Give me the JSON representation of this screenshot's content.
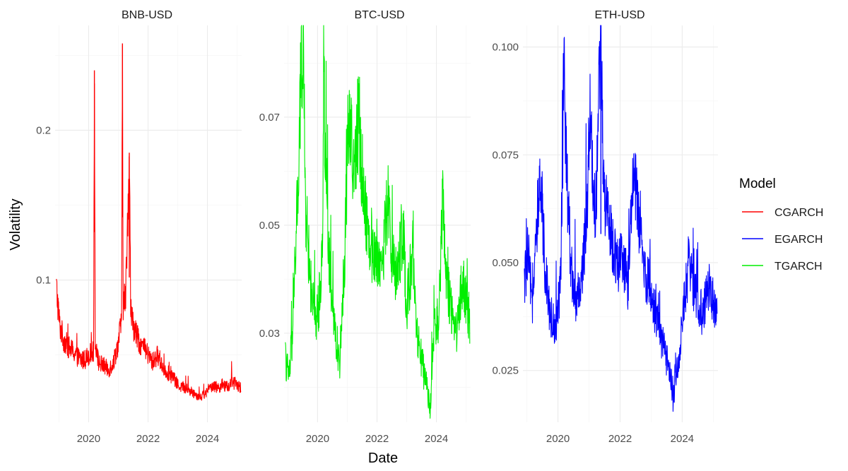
{
  "chart_data": {
    "type": "line",
    "x_label": "Date",
    "y_label": "Volatility",
    "colors": {
      "CGARCH": "#ff0000",
      "EGARCH": "#0000ff",
      "TGARCH": "#00ee00"
    },
    "legend": {
      "title": "Model",
      "position": "right",
      "entries": [
        "CGARCH",
        "EGARCH",
        "TGARCH"
      ]
    },
    "grid": true,
    "panels": [
      {
        "title": "BNB-USD",
        "series": "CGARCH",
        "xlim": [
          "2018-11-15",
          "2025-02-25"
        ],
        "ylim": [
          0.005,
          0.27
        ],
        "x_ticks": [
          "2020",
          "2022",
          "2024"
        ],
        "y_ticks": [
          "0.1",
          "0.2"
        ],
        "y_tick_values": [
          0.1,
          0.2
        ],
        "points": [
          [
            "2018-12-01",
            0.095
          ],
          [
            "2019-01-10",
            0.07
          ],
          [
            "2019-03-01",
            0.06
          ],
          [
            "2019-05-01",
            0.055
          ],
          [
            "2019-07-01",
            0.052
          ],
          [
            "2019-09-01",
            0.048
          ],
          [
            "2019-11-01",
            0.046
          ],
          [
            "2020-01-01",
            0.05
          ],
          [
            "2020-03-01",
            0.052
          ],
          [
            "2020-03-12",
            0.24
          ],
          [
            "2020-03-22",
            0.06
          ],
          [
            "2020-05-01",
            0.045
          ],
          [
            "2020-07-01",
            0.043
          ],
          [
            "2020-09-01",
            0.04
          ],
          [
            "2020-11-01",
            0.045
          ],
          [
            "2021-01-01",
            0.058
          ],
          [
            "2021-02-10",
            0.075
          ],
          [
            "2021-02-20",
            0.258
          ],
          [
            "2021-03-01",
            0.085
          ],
          [
            "2021-04-01",
            0.09
          ],
          [
            "2021-05-15",
            0.185
          ],
          [
            "2021-06-01",
            0.08
          ],
          [
            "2021-07-01",
            0.07
          ],
          [
            "2021-09-01",
            0.06
          ],
          [
            "2021-11-01",
            0.055
          ],
          [
            "2022-01-01",
            0.05
          ],
          [
            "2022-03-01",
            0.045
          ],
          [
            "2022-05-01",
            0.05
          ],
          [
            "2022-07-01",
            0.042
          ],
          [
            "2022-09-01",
            0.038
          ],
          [
            "2022-11-01",
            0.035
          ],
          [
            "2023-01-01",
            0.03
          ],
          [
            "2023-04-01",
            0.028
          ],
          [
            "2023-07-01",
            0.025
          ],
          [
            "2023-10-01",
            0.022
          ],
          [
            "2024-01-01",
            0.025
          ],
          [
            "2024-03-01",
            0.03
          ],
          [
            "2024-05-01",
            0.028
          ],
          [
            "2024-07-01",
            0.03
          ],
          [
            "2024-09-01",
            0.028
          ],
          [
            "2024-11-01",
            0.032
          ],
          [
            "2025-01-01",
            0.03
          ],
          [
            "2025-02-15",
            0.028
          ]
        ]
      },
      {
        "title": "BTC-USD",
        "series": "TGARCH",
        "xlim": [
          "2018-11-15",
          "2025-02-25"
        ],
        "ylim": [
          0.0135,
          0.087
        ],
        "x_ticks": [
          "2020",
          "2022",
          "2024"
        ],
        "y_ticks": [
          "0.03",
          "0.05",
          "0.07"
        ],
        "y_tick_values": [
          0.03,
          0.05,
          0.07
        ],
        "points": [
          [
            "2018-12-01",
            0.025
          ],
          [
            "2019-01-15",
            0.022
          ],
          [
            "2019-03-01",
            0.03
          ],
          [
            "2019-04-15",
            0.05
          ],
          [
            "2019-05-15",
            0.06
          ],
          [
            "2019-06-15",
            0.08
          ],
          [
            "2019-07-10",
            0.084
          ],
          [
            "2019-08-01",
            0.055
          ],
          [
            "2019-10-01",
            0.04
          ],
          [
            "2019-12-01",
            0.032
          ],
          [
            "2020-01-15",
            0.035
          ],
          [
            "2020-03-01",
            0.045
          ],
          [
            "2020-03-15",
            0.079
          ],
          [
            "2020-04-15",
            0.06
          ],
          [
            "2020-06-01",
            0.04
          ],
          [
            "2020-08-01",
            0.03
          ],
          [
            "2020-10-01",
            0.025
          ],
          [
            "2020-12-01",
            0.045
          ],
          [
            "2021-01-15",
            0.072
          ],
          [
            "2021-02-15",
            0.065
          ],
          [
            "2021-04-01",
            0.06
          ],
          [
            "2021-05-20",
            0.071
          ],
          [
            "2021-07-01",
            0.06
          ],
          [
            "2021-09-01",
            0.05
          ],
          [
            "2021-11-01",
            0.045
          ],
          [
            "2022-01-01",
            0.045
          ],
          [
            "2022-03-01",
            0.042
          ],
          [
            "2022-05-15",
            0.055
          ],
          [
            "2022-07-01",
            0.045
          ],
          [
            "2022-09-01",
            0.04
          ],
          [
            "2022-11-15",
            0.05
          ],
          [
            "2023-01-01",
            0.035
          ],
          [
            "2023-03-15",
            0.045
          ],
          [
            "2023-05-01",
            0.03
          ],
          [
            "2023-07-01",
            0.025
          ],
          [
            "2023-09-01",
            0.02
          ],
          [
            "2023-10-15",
            0.016
          ],
          [
            "2023-12-01",
            0.03
          ],
          [
            "2024-02-01",
            0.033
          ],
          [
            "2024-03-15",
            0.054
          ],
          [
            "2024-05-01",
            0.04
          ],
          [
            "2024-07-01",
            0.035
          ],
          [
            "2024-09-01",
            0.03
          ],
          [
            "2024-11-15",
            0.04
          ],
          [
            "2025-01-15",
            0.035
          ],
          [
            "2025-02-15",
            0.032
          ]
        ]
      },
      {
        "title": "ETH-USD",
        "series": "EGARCH",
        "xlim": [
          "2018-11-15",
          "2025-02-25"
        ],
        "ylim": [
          0.013,
          0.105
        ],
        "x_ticks": [
          "2020",
          "2022",
          "2024"
        ],
        "y_ticks": [
          "0.025",
          "0.050",
          "0.075",
          "0.100"
        ],
        "y_tick_values": [
          0.025,
          0.05,
          0.075,
          0.1
        ],
        "points": [
          [
            "2018-12-01",
            0.045
          ],
          [
            "2019-01-15",
            0.052
          ],
          [
            "2019-03-01",
            0.04
          ],
          [
            "2019-05-01",
            0.058
          ],
          [
            "2019-06-15",
            0.068
          ],
          [
            "2019-08-01",
            0.05
          ],
          [
            "2019-10-01",
            0.038
          ],
          [
            "2019-12-01",
            0.035
          ],
          [
            "2020-02-01",
            0.045
          ],
          [
            "2020-03-15",
            0.094
          ],
          [
            "2020-04-15",
            0.07
          ],
          [
            "2020-06-01",
            0.05
          ],
          [
            "2020-08-01",
            0.04
          ],
          [
            "2020-10-01",
            0.045
          ],
          [
            "2020-12-01",
            0.06
          ],
          [
            "2021-01-15",
            0.085
          ],
          [
            "2021-02-15",
            0.07
          ],
          [
            "2021-03-15",
            0.06
          ],
          [
            "2021-05-20",
            0.103
          ],
          [
            "2021-06-15",
            0.07
          ],
          [
            "2021-08-01",
            0.06
          ],
          [
            "2021-10-01",
            0.055
          ],
          [
            "2021-12-01",
            0.05
          ],
          [
            "2022-02-01",
            0.05
          ],
          [
            "2022-04-01",
            0.045
          ],
          [
            "2022-06-15",
            0.073
          ],
          [
            "2022-08-01",
            0.06
          ],
          [
            "2022-10-01",
            0.05
          ],
          [
            "2022-12-01",
            0.045
          ],
          [
            "2023-02-01",
            0.04
          ],
          [
            "2023-04-01",
            0.035
          ],
          [
            "2023-06-01",
            0.03
          ],
          [
            "2023-08-01",
            0.025
          ],
          [
            "2023-09-15",
            0.018
          ],
          [
            "2023-11-01",
            0.025
          ],
          [
            "2024-01-01",
            0.035
          ],
          [
            "2024-03-15",
            0.05
          ],
          [
            "2024-05-01",
            0.045
          ],
          [
            "2024-07-01",
            0.04
          ],
          [
            "2024-09-01",
            0.038
          ],
          [
            "2024-11-01",
            0.045
          ],
          [
            "2025-01-01",
            0.042
          ],
          [
            "2025-02-15",
            0.038
          ]
        ]
      }
    ]
  }
}
